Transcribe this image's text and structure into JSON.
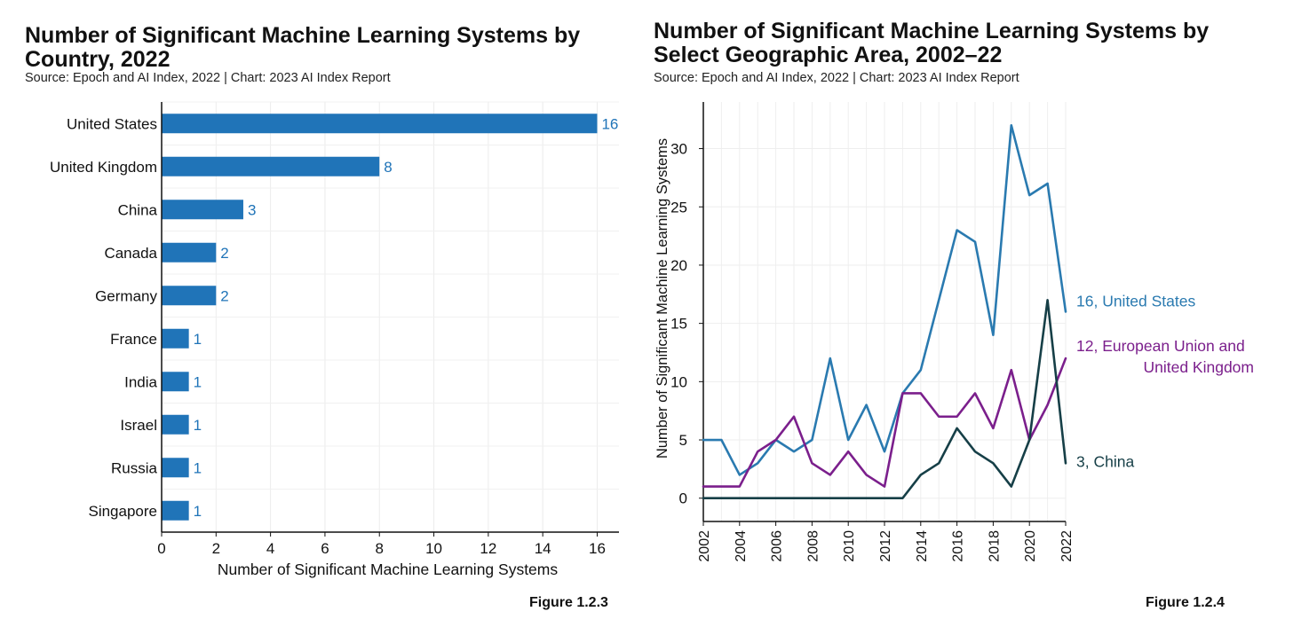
{
  "chart_data": [
    {
      "type": "bar",
      "orientation": "horizontal",
      "title": "Number of Significant Machine Learning Systems by Country, 2022",
      "title_lines": [
        "Number of Significant Machine Learning Systems by",
        "Country, 2022"
      ],
      "source": "Source: Epoch and AI Index, 2022 | Chart: 2023 AI Index Report",
      "figure_label": "Figure 1.2.3",
      "categories": [
        "United States",
        "United Kingdom",
        "China",
        "Canada",
        "Germany",
        "France",
        "India",
        "Israel",
        "Russia",
        "Singapore"
      ],
      "values": [
        16,
        8,
        3,
        2,
        2,
        1,
        1,
        1,
        1,
        1
      ],
      "xlabel": "Number of Significant Machine Learning Systems",
      "ylabel": "",
      "xlim": [
        0,
        16.8
      ],
      "xticks": [
        0,
        2,
        4,
        6,
        8,
        10,
        12,
        14,
        16
      ],
      "grid": true,
      "bar_color": "#2074b8",
      "label_color": "#2074b8"
    },
    {
      "type": "line",
      "title": "Number of Significant Machine Learning Systems by Select Geographic Area, 2002–22",
      "title_lines": [
        "Number of Significant Machine Learning Systems by",
        "Select Geographic Area, 2002–22"
      ],
      "source": "Source: Epoch and AI Index, 2022 | Chart: 2023 AI Index Report",
      "figure_label": "Figure 1.2.4",
      "x": [
        2002,
        2003,
        2004,
        2005,
        2006,
        2007,
        2008,
        2009,
        2010,
        2011,
        2012,
        2013,
        2014,
        2015,
        2016,
        2017,
        2018,
        2019,
        2020,
        2021,
        2022
      ],
      "xticks": [
        2002,
        2004,
        2006,
        2008,
        2010,
        2012,
        2014,
        2016,
        2018,
        2020,
        2022
      ],
      "yticks": [
        0,
        5,
        10,
        15,
        20,
        25,
        30
      ],
      "xlim": [
        2002,
        2022
      ],
      "ylim": [
        -2,
        34
      ],
      "xlabel": "",
      "ylabel": "Number of  Significant Machine Learning Systems",
      "grid": true,
      "series": [
        {
          "name": "United States",
          "end_label_lines": [
            "16, United States"
          ],
          "color": "#2a7ab0",
          "values": [
            5,
            5,
            2,
            3,
            5,
            4,
            5,
            12,
            5,
            8,
            4,
            9,
            11,
            17,
            23,
            22,
            14,
            32,
            26,
            27,
            16
          ]
        },
        {
          "name": "European Union and United Kingdom",
          "end_label_lines": [
            "12, European Union and",
            "United Kingdom"
          ],
          "color": "#7b1f8c",
          "values": [
            1,
            1,
            1,
            4,
            5,
            7,
            3,
            2,
            4,
            2,
            1,
            9,
            9,
            7,
            7,
            9,
            6,
            11,
            5,
            8,
            12
          ]
        },
        {
          "name": "China",
          "end_label_lines": [
            "3, China"
          ],
          "color": "#163f47",
          "values": [
            0,
            0,
            0,
            0,
            0,
            0,
            0,
            0,
            0,
            0,
            0,
            0,
            2,
            3,
            6,
            4,
            3,
            1,
            5,
            17,
            3
          ]
        }
      ]
    }
  ]
}
